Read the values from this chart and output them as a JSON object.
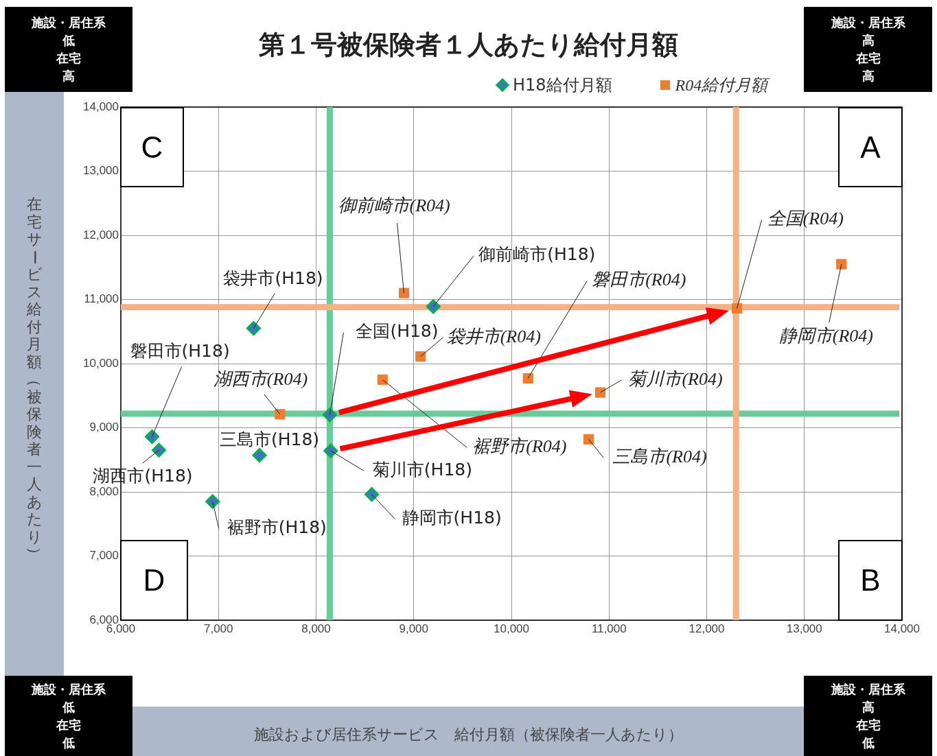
{
  "chart_data": {
    "type": "scatter",
    "title": "第１号被保険者１人あたり給付月額",
    "ylabel": "在宅サービス給付月額（被保険者一人あたり）",
    "series": [
      {
        "name": "H18給付月額",
        "color": "#4472c4",
        "marker": "diamond",
        "x": [
          8140,
          8570,
          9200,
          7360,
          6320,
          6390,
          7420,
          6940,
          8150
        ],
        "values": [
          9200,
          7960,
          10890,
          10550,
          8860,
          8650,
          8570,
          7850,
          8640
        ]
      },
      {
        "name": "R04給付月額",
        "color": "#ed7d31",
        "marker": "square",
        "x": [
          12310,
          13380,
          8900,
          9070,
          10170,
          7630,
          10790,
          8680,
          10910
        ],
        "values": [
          10860,
          11550,
          11100,
          10110,
          9770,
          9210,
          8820,
          9750,
          9550
        ]
      }
    ],
    "xlim": [
      6000,
      14000
    ],
    "ylim": [
      6000,
      14000
    ],
    "xticks": [
      {
        "value": 6000,
        "label": "6,000"
      },
      {
        "value": 7000,
        "label": "7,000"
      },
      {
        "value": 8000,
        "label": "8,000"
      },
      {
        "value": 9000,
        "label": "9,000"
      },
      {
        "value": 10000,
        "label": "10,000"
      },
      {
        "value": 11000,
        "label": "11,000"
      },
      {
        "value": 12000,
        "label": "12,000"
      },
      {
        "value": 13000,
        "label": "13,000"
      },
      {
        "value": 14000,
        "label": "14,000"
      }
    ],
    "yticks": [
      {
        "value": 6000,
        "label": "6,000"
      },
      {
        "value": 7000,
        "label": "7,000"
      },
      {
        "value": 8000,
        "label": "8,000"
      },
      {
        "value": 9000,
        "label": "9,000"
      },
      {
        "value": 10000,
        "label": "10,000"
      },
      {
        "value": 11000,
        "label": "11,000"
      },
      {
        "value": 12000,
        "label": "12,000"
      },
      {
        "value": 13000,
        "label": "13,000"
      },
      {
        "value": 14000,
        "label": "14,000"
      }
    ],
    "grid": true,
    "legend": "top right",
    "ref_lines": [
      {
        "axis": "x",
        "value": 8140,
        "color": "#66cc99"
      },
      {
        "axis": "y",
        "value": 9220,
        "color": "#66cc99"
      },
      {
        "axis": "x",
        "value": 12300,
        "color": "#f4b183"
      },
      {
        "axis": "y",
        "value": 10880,
        "color": "#f4b183"
      }
    ],
    "annotations": [
      "C",
      "A",
      "D",
      "B",
      "施設・居住系",
      "低",
      "在宅",
      "高",
      "施設・居住系",
      "高",
      "在宅",
      "高",
      "施設・居住系",
      "低",
      "在宅",
      "低",
      "施設・居住系",
      "高",
      "在宅",
      "低",
      "施設および居住系サービス　給付月額（被保険者一人あたり）",
      {
        "text": "全国(H18)",
        "x": 8140,
        "y": 9200
      },
      {
        "text": "静岡市(H18)",
        "x": 8570,
        "y": 7960
      },
      {
        "text": "御前崎市(H18)",
        "x": 9200,
        "y": 10890
      },
      {
        "text": "袋井市(H18)",
        "x": 7360,
        "y": 10550
      },
      {
        "text": "磐田市(H18)",
        "x": 6320,
        "y": 8860
      },
      {
        "text": "湖西市(H18)",
        "x": 6390,
        "y": 8650
      },
      {
        "text": "三島市(H18)",
        "x": 7420,
        "y": 8570
      },
      {
        "text": "裾野市(H18)",
        "x": 6940,
        "y": 7850
      },
      {
        "text": "菊川市(H18)",
        "x": 8150,
        "y": 8640
      },
      {
        "text": "全国(R04)",
        "x": 12310,
        "y": 10860
      },
      {
        "text": "静岡市(R04)",
        "x": 13380,
        "y": 11550
      },
      {
        "text": "御前崎市(R04)",
        "x": 8900,
        "y": 11100
      },
      {
        "text": "袋井市(R04)",
        "x": 9070,
        "y": 10110
      },
      {
        "text": "磐田市(R04)",
        "x": 10170,
        "y": 9770
      },
      {
        "text": "湖西市(R04)",
        "x": 7630,
        "y": 9210
      },
      {
        "text": "三島市(R04)",
        "x": 10790,
        "y": 8820
      },
      {
        "text": "裾野市(R04)",
        "x": 8680,
        "y": 9750
      },
      {
        "text": "菊川市(R04)",
        "x": 10910,
        "y": 9550
      }
    ]
  }
}
